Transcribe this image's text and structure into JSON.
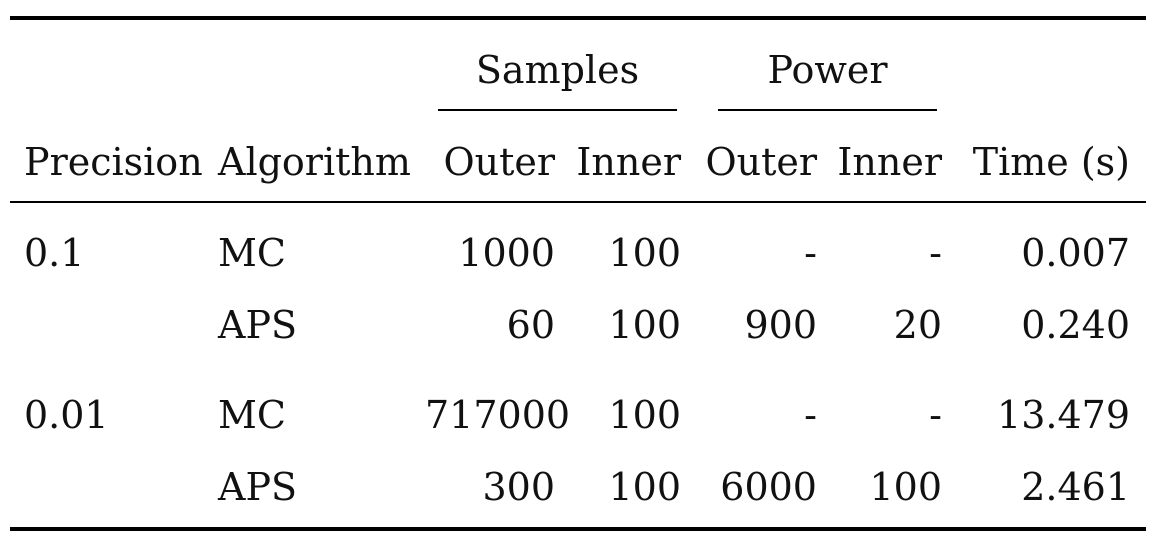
{
  "table": {
    "group_headers": {
      "samples": "Samples",
      "power": "Power"
    },
    "columns": {
      "precision": "Precision",
      "algorithm": "Algorithm",
      "samples_outer": "Outer",
      "samples_inner": "Inner",
      "power_outer": "Outer",
      "power_inner": "Inner",
      "time": "Time (s)"
    },
    "rows": [
      {
        "precision": "0.1",
        "algorithm": "MC",
        "samples_outer": "1000",
        "samples_inner": "100",
        "power_outer": "-",
        "power_inner": "-",
        "time": "0.007"
      },
      {
        "precision": "",
        "algorithm": "APS",
        "samples_outer": "60",
        "samples_inner": "100",
        "power_outer": "900",
        "power_inner": "20",
        "time": "0.240"
      },
      {
        "precision": "0.01",
        "algorithm": "MC",
        "samples_outer": "717000",
        "samples_inner": "100",
        "power_outer": "-",
        "power_inner": "-",
        "time": "13.479"
      },
      {
        "precision": "",
        "algorithm": "APS",
        "samples_outer": "300",
        "samples_inner": "100",
        "power_outer": "6000",
        "power_inner": "100",
        "time": "2.461"
      }
    ]
  }
}
